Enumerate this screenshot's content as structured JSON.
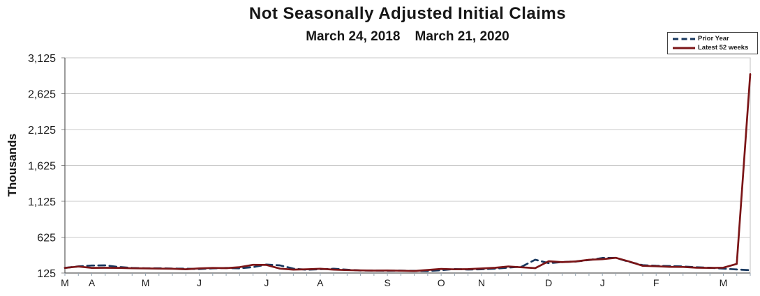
{
  "chart_data": {
    "type": "line",
    "title": "Not Seasonally Adjusted Initial Claims",
    "subtitle": "March 24, 2018    March 21, 2020",
    "ylabel": "Thousands",
    "ylim": [
      125,
      3125
    ],
    "y_tick_values": [
      125,
      625,
      1125,
      1625,
      2125,
      2625,
      3125
    ],
    "y_tick_labels": [
      "125",
      "625",
      "1,125",
      "1,625",
      "2,125",
      "2,625",
      "3,125"
    ],
    "x_unit": "weekly, 52 points per series",
    "grid": true,
    "legend_position": "top-right",
    "month_labels": [
      {
        "label": "M",
        "week": 0
      },
      {
        "label": "A",
        "week": 2
      },
      {
        "label": "M",
        "week": 6
      },
      {
        "label": "J",
        "week": 10
      },
      {
        "label": "J",
        "week": 15
      },
      {
        "label": "A",
        "week": 19
      },
      {
        "label": "S",
        "week": 24
      },
      {
        "label": "O",
        "week": 28
      },
      {
        "label": "N",
        "week": 31
      },
      {
        "label": "D",
        "week": 36
      },
      {
        "label": "J",
        "week": 40
      },
      {
        "label": "F",
        "week": 44
      },
      {
        "label": "M",
        "week": 49
      }
    ],
    "series": [
      {
        "name": "Prior Year",
        "color": "#17375E",
        "line_style": "dashed",
        "values": [
          197,
          217,
          230,
          232,
          209,
          196,
          191,
          191,
          187,
          185,
          180,
          190,
          196,
          190,
          208,
          243,
          232,
          186,
          171,
          178,
          184,
          172,
          160,
          159,
          156,
          158,
          155,
          153,
          164,
          180,
          174,
          177,
          185,
          201,
          214,
          310,
          262,
          277,
          285,
          306,
          335,
          337,
          280,
          235,
          226,
          222,
          216,
          206,
          199,
          186,
          175,
          165
        ]
      },
      {
        "name": "Latest 52 weeks",
        "color": "#7B1517",
        "line_style": "solid",
        "values": [
          196,
          215,
          197,
          198,
          197,
          191,
          189,
          186,
          184,
          177,
          189,
          196,
          193,
          207,
          240,
          238,
          186,
          173,
          177,
          184,
          173,
          166,
          162,
          159,
          161,
          157,
          153,
          168,
          182,
          176,
          179,
          188,
          198,
          216,
          205,
          193,
          289,
          276,
          286,
          309,
          318,
          337,
          285,
          225,
          219,
          211,
          209,
          199,
          196,
          200,
          252,
          2898
        ]
      }
    ]
  }
}
